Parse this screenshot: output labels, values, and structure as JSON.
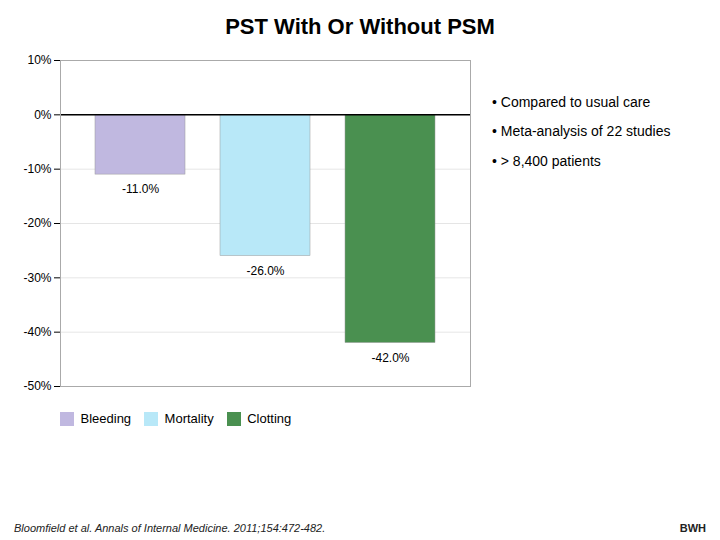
{
  "chart_data": {
    "type": "bar",
    "title": "PST With Or Without PSM",
    "categories": [
      "Bleeding",
      "Mortality",
      "Clotting"
    ],
    "values": [
      -11.0,
      -26.0,
      -42.0
    ],
    "value_labels": [
      "-11.0%",
      "-26.0%",
      "-42.0%"
    ],
    "colors": [
      "#C0B8E0",
      "#B8E8F8",
      "#4A9050"
    ],
    "ylim": [
      -50,
      10
    ],
    "yticks": [
      {
        "value": 10,
        "label": "10%"
      },
      {
        "value": 0,
        "label": "0%"
      },
      {
        "value": -10,
        "label": "-10%"
      },
      {
        "value": -20,
        "label": "-20%"
      },
      {
        "value": -30,
        "label": "-30%"
      },
      {
        "value": -40,
        "label": "-40%"
      },
      {
        "value": -50,
        "label": "-50%"
      }
    ],
    "grid": true,
    "legend": "bottom",
    "data_labels": true,
    "tick_labels": "y",
    "annotations": [
      "• Compared to usual care",
      "• Meta-analysis of 22 studies",
      "• > 8,400 patients",
      "Bloomfield et al.  Annals of Internal Medicine. 2011;154:472-482.",
      "BWH"
    ]
  }
}
